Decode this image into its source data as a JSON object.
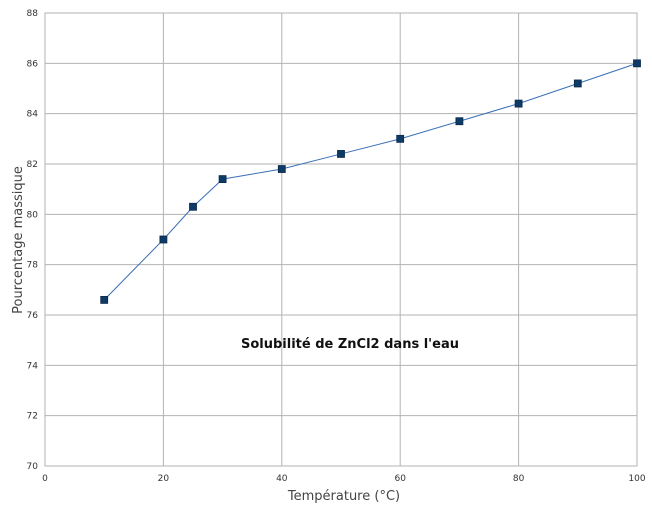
{
  "chart_data": {
    "type": "line",
    "title": "",
    "annotation": "Solubilité de ZnCl2 dans l'eau",
    "xlabel": "Température (°C)",
    "ylabel": "Pourcentage massique",
    "xlim": [
      0,
      100
    ],
    "ylim": [
      70,
      88
    ],
    "x_ticks": [
      0,
      20,
      40,
      60,
      80,
      100
    ],
    "y_ticks": [
      70,
      72,
      74,
      76,
      78,
      80,
      82,
      84,
      86,
      88
    ],
    "grid": true,
    "legend": "none",
    "series": [
      {
        "x": [
          10,
          20,
          25,
          30,
          40,
          50,
          60,
          70,
          80,
          90,
          100
        ],
        "values": [
          76.6,
          79.0,
          80.3,
          81.4,
          81.8,
          82.4,
          83.0,
          83.7,
          84.4,
          85.2,
          86.0
        ],
        "line_color": "#3b6fb6",
        "marker_color": "#0d3a66",
        "marker": "square"
      }
    ]
  }
}
